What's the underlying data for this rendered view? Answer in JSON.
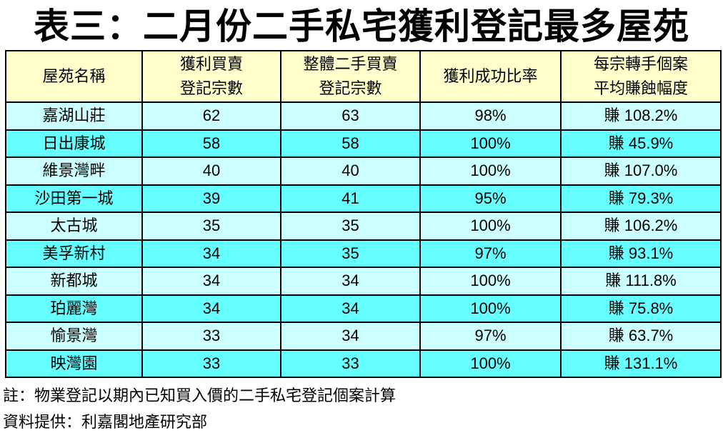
{
  "colors": {
    "header_bg": "#FFFFCC",
    "row_light": "#CCFFFF",
    "row_dark": "#66FFFF",
    "border": "#000000",
    "text": "#000000"
  },
  "chart_data": {
    "type": "table",
    "title": "表三：二月份二手私宅獲利登記最多屋苑",
    "columns": [
      {
        "name": "estate-name",
        "lines": [
          "屋苑名稱"
        ]
      },
      {
        "name": "profit-registrations",
        "lines": [
          "獲利買賣",
          "登記宗數"
        ]
      },
      {
        "name": "total-secondhand-registrations",
        "lines": [
          "整體二手買賣",
          "登記宗數"
        ]
      },
      {
        "name": "profit-success-ratio",
        "lines": [
          "獲利成功比率"
        ]
      },
      {
        "name": "average-gain-per-resale",
        "lines": [
          "每宗轉手個案",
          "平均賺蝕幅度"
        ]
      }
    ],
    "rows": [
      [
        "嘉湖山莊",
        "62",
        "63",
        "98%",
        "賺 108.2%"
      ],
      [
        "日出康城",
        "58",
        "58",
        "100%",
        "賺 45.9%"
      ],
      [
        "維景灣畔",
        "40",
        "40",
        "100%",
        "賺 107.0%"
      ],
      [
        "沙田第一城",
        "39",
        "41",
        "95%",
        "賺 79.3%"
      ],
      [
        "太古城",
        "35",
        "35",
        "100%",
        "賺 106.2%"
      ],
      [
        "美孚新村",
        "34",
        "35",
        "97%",
        "賺 93.1%"
      ],
      [
        "新都城",
        "34",
        "34",
        "100%",
        "賺 111.8%"
      ],
      [
        "珀麗灣",
        "34",
        "34",
        "100%",
        "賺 75.8%"
      ],
      [
        "愉景灣",
        "33",
        "34",
        "97%",
        "賺 63.7%"
      ],
      [
        "映灣園",
        "33",
        "33",
        "100%",
        "賺 131.1%"
      ]
    ],
    "notes": [
      "註：物業登記以期內已知買入價的二手私宅登記個案計算",
      "資料提供：利嘉閣地產研究部"
    ]
  }
}
